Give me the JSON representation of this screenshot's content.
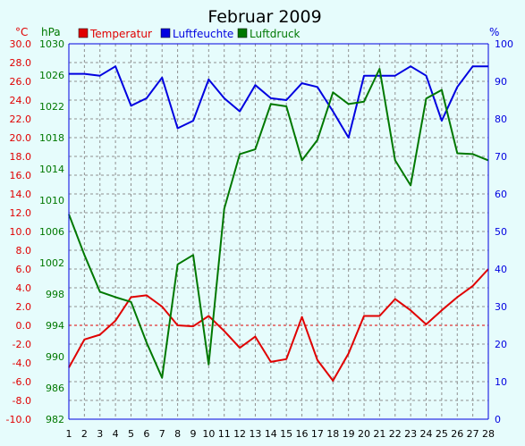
{
  "chart_data": {
    "type": "line",
    "title": "Februar 2009",
    "axis_units": {
      "temperature": "°C",
      "pressure": "hPa",
      "humidity": "%"
    },
    "x": [
      1,
      2,
      3,
      4,
      5,
      6,
      7,
      8,
      9,
      10,
      11,
      12,
      13,
      14,
      15,
      16,
      17,
      18,
      19,
      20,
      21,
      22,
      23,
      24,
      25,
      26,
      27,
      28
    ],
    "x_tick_labels": [
      "1",
      "2",
      "3",
      "4",
      "5",
      "6",
      "7",
      "8",
      "9",
      "10",
      "11",
      "12",
      "13",
      "14",
      "15",
      "16",
      "17",
      "18",
      "19",
      "20",
      "21",
      "22",
      "23",
      "24",
      "25",
      "26",
      "27",
      "28"
    ],
    "xlim": [
      1,
      28
    ],
    "temperature_axis": {
      "ylim": [
        -10,
        30
      ],
      "ticks": [
        "30.0",
        "28.0",
        "26.0",
        "24.0",
        "22.0",
        "20.0",
        "18.0",
        "16.0",
        "14.0",
        "12.0",
        "10.0",
        "8.0",
        "6.0",
        "4.0",
        "2.0",
        "0.0",
        "-2.0",
        "-4.0",
        "-6.0",
        "-8.0",
        "-10.0"
      ]
    },
    "pressure_axis": {
      "ylim": [
        982,
        1030
      ],
      "ticks": [
        "1030",
        "1026",
        "1022",
        "1018",
        "1014",
        "1010",
        "1006",
        "1002",
        "998",
        "994",
        "990",
        "986",
        "982"
      ]
    },
    "humidity_axis": {
      "ylim": [
        0,
        100
      ],
      "ticks": [
        "100",
        "90",
        "80",
        "70",
        "60",
        "50",
        "40",
        "30",
        "20",
        "10",
        "0"
      ]
    },
    "grid": true,
    "legend_position": "top-left",
    "series": [
      {
        "name": "Temperatur",
        "axis": "temperature",
        "color": "#e00000",
        "values": [
          -4.5,
          -1.5,
          -1.0,
          0.5,
          3.0,
          3.2,
          2.0,
          0.0,
          -0.1,
          1.0,
          -0.6,
          -2.4,
          -1.2,
          -3.9,
          -3.6,
          0.9,
          -3.7,
          -5.9,
          -3.0,
          1.0,
          1.0,
          2.8,
          1.6,
          0.1,
          1.6,
          3.0,
          4.2,
          6.0
        ]
      },
      {
        "name": "Luftfeuchte",
        "axis": "humidity",
        "color": "#0000e0",
        "values": [
          92,
          92,
          91.5,
          94,
          83.5,
          85.5,
          91,
          77.5,
          79.5,
          90.5,
          85.5,
          82,
          89,
          85.5,
          85,
          89.5,
          88.5,
          82,
          75,
          91.5,
          91.5,
          91.5,
          94,
          91.5,
          79.5,
          88.5,
          94,
          94
        ]
      },
      {
        "name": "Luftdruck",
        "axis": "pressure",
        "color": "#007800",
        "values": [
          1008.2,
          1003.0,
          998.3,
          997.6,
          997.0,
          991.8,
          987.3,
          1001.8,
          1003.0,
          989.0,
          1008.9,
          1015.9,
          1016.5,
          1022.3,
          1022.0,
          1015.1,
          1017.7,
          1023.8,
          1022.3,
          1022.6,
          1026.8,
          1015.1,
          1011.9,
          1023.0,
          1024.1,
          1016.0,
          1015.9,
          1015.1
        ]
      }
    ]
  }
}
